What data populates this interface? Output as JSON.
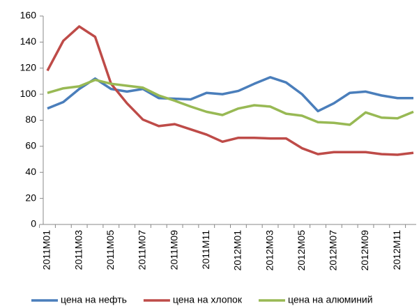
{
  "chart_data": {
    "type": "line",
    "categories": [
      "2011M01",
      null,
      "2011M03",
      null,
      "2011M05",
      null,
      "2011M07",
      null,
      "2011M09",
      null,
      "2011M11",
      null,
      "2012M01",
      null,
      "2012M03",
      null,
      "2012M05",
      null,
      "2012M07",
      null,
      "2012M09",
      null,
      "2012M11",
      null
    ],
    "series": [
      {
        "name": "цена на нефть",
        "color": "#4a7ebb",
        "values": [
          89,
          94,
          104,
          112,
          104,
          102,
          104,
          97,
          96.5,
          96,
          101,
          100,
          102.5,
          108,
          113,
          109,
          100,
          87,
          93,
          101,
          102,
          99,
          97,
          97
        ]
      },
      {
        "name": "цена на хлопок",
        "color": "#be4b48",
        "values": [
          118,
          141,
          152,
          144,
          108,
          93,
          80.5,
          75.5,
          77,
          73,
          69,
          63.5,
          66.5,
          66.5,
          66,
          66,
          58.5,
          54,
          55.5,
          55.5,
          55.5,
          54,
          53.5,
          55
        ]
      },
      {
        "name": "цена на алюминий",
        "color": "#98b954",
        "values": [
          101,
          104.5,
          106,
          111,
          108,
          106.5,
          105,
          99,
          95,
          90.5,
          86.5,
          84,
          89,
          91.5,
          90.5,
          85,
          83.5,
          78.5,
          78,
          76.5,
          86,
          82,
          81.5,
          86.5
        ]
      }
    ],
    "ylim": [
      0,
      160
    ],
    "yticks": [
      0,
      20,
      40,
      60,
      80,
      100,
      120,
      140,
      160
    ],
    "grid": false,
    "legend": "bottom"
  }
}
